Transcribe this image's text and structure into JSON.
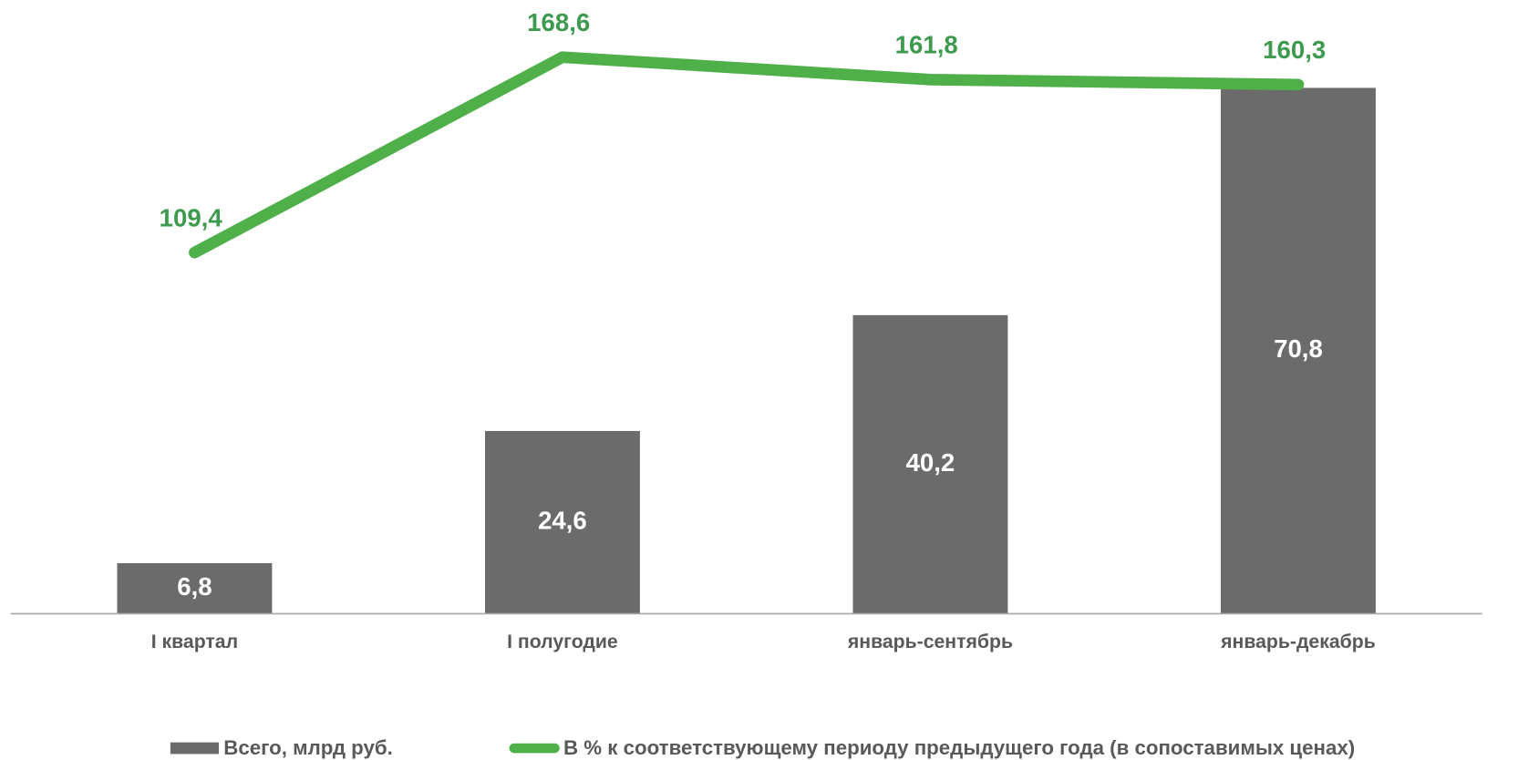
{
  "chart_data": {
    "type": "bar_line",
    "categories": [
      "I квартал",
      "I полугодие",
      "январь-сентябрь",
      "январь-декабрь"
    ],
    "series": [
      {
        "name": "Всего, млрд руб.",
        "type": "bar",
        "color": "#6b6b6b",
        "values": [
          6.8,
          24.6,
          40.2,
          70.8
        ],
        "value_labels": [
          "6,8",
          "24,6",
          "40,2",
          "70,8"
        ]
      },
      {
        "name": "В % к соответствующему периоду предыдущего года (в сопоставимых ценах)",
        "type": "line",
        "axis": "y2",
        "color": "#4fb04a",
        "values": [
          109.4,
          168.6,
          161.8,
          160.3
        ],
        "value_labels": [
          "109,4",
          "168,6",
          "161,8",
          "160,3"
        ]
      }
    ],
    "ylim": [
      0,
      80
    ],
    "y2lim": [
      0,
      180
    ],
    "legend": "bottom"
  }
}
